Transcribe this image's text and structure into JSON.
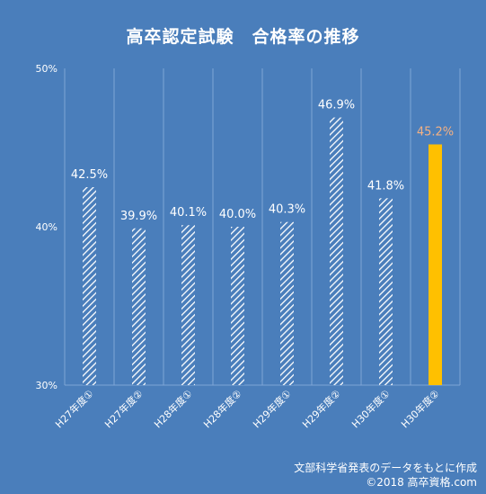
{
  "chart_data": {
    "type": "bar",
    "title": "高卒認定試験　合格率の推移",
    "categories": [
      "H27年度①",
      "H27年度②",
      "H28年度①",
      "H28年度②",
      "H29年度①",
      "H29年度②",
      "H30年度①",
      "H30年度②"
    ],
    "values": [
      42.5,
      39.9,
      40.1,
      40.0,
      40.3,
      46.9,
      41.8,
      45.2
    ],
    "value_labels": [
      "42.5%",
      "39.9%",
      "40.1%",
      "40.0%",
      "40.3%",
      "46.9%",
      "41.8%",
      "45.2%"
    ],
    "highlight_index": 7,
    "ylim": [
      30,
      50
    ],
    "yticks": [
      30,
      40,
      50
    ],
    "ytick_labels": [
      "30%",
      "40%",
      "50%"
    ],
    "xlabel": "",
    "ylabel": "",
    "grid": "vertical",
    "legend": "none",
    "colors": {
      "background": "#4a7ebb",
      "bar_hatch": "#ffffff",
      "highlight_bar": "#ffc000",
      "highlight_label": "#f4b183",
      "text": "#ffffff",
      "gridline": "#7fa6d6"
    }
  },
  "footer": {
    "source": "文部科学省発表のデータをもとに作成",
    "copyright": "©2018 高卒資格.com"
  }
}
